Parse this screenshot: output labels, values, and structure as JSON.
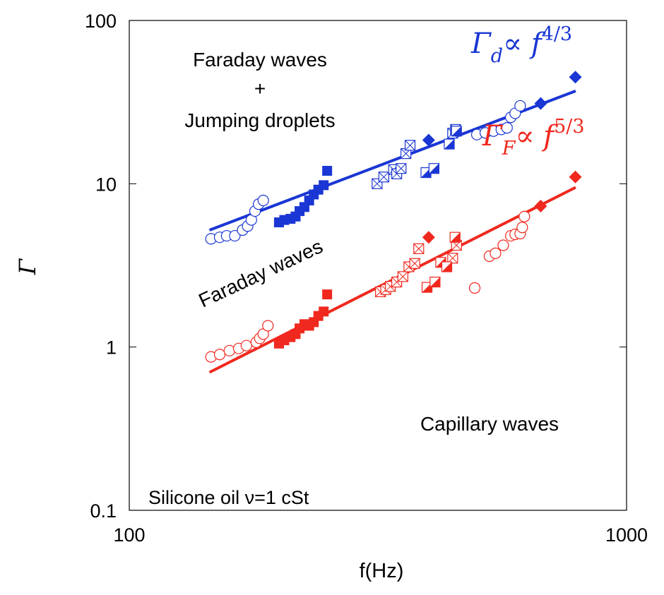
{
  "chart_data": {
    "type": "scatter",
    "title": "",
    "xlabel": "f(Hz)",
    "ylabel": "Γ",
    "xscale": "log",
    "yscale": "log",
    "xlim": [
      100,
      1000
    ],
    "ylim": [
      0.1,
      100
    ],
    "x_ticks": [
      {
        "value": 100,
        "label": "100"
      },
      {
        "value": 1000,
        "label": "1000"
      }
    ],
    "y_ticks": [
      {
        "value": 0.1,
        "label": "0.1"
      },
      {
        "value": 1,
        "label": "1"
      },
      {
        "value": 10,
        "label": "10"
      },
      {
        "value": 100,
        "label": "100"
      }
    ],
    "grid": false,
    "colors": {
      "droplet": "#1a36d4",
      "faraday": "#f0281e"
    },
    "region_labels": {
      "top_line1": "Faraday waves",
      "top_line2": "+",
      "top_line3": "Jumping droplets",
      "middle": "Faraday waves",
      "bottom": "Capillary waves",
      "fluid": "Silicone oil ν=1 cSt"
    },
    "fit_labels": {
      "droplet": {
        "gamma": "Γ",
        "subscript": "d",
        "rest": "∝ f",
        "exponent": "4/3"
      },
      "faraday": {
        "gamma": "Γ",
        "subscript": "F",
        "rest": "∝ f",
        "exponent": "5/3"
      }
    },
    "series": [
      {
        "color": "#1a36d4",
        "marker": "open-circle",
        "points": [
          [
            146,
            4.6
          ],
          [
            152,
            4.7
          ],
          [
            157,
            4.8
          ],
          [
            163,
            4.8
          ],
          [
            169,
            5.2
          ],
          [
            173,
            5.5
          ],
          [
            176,
            6
          ],
          [
            179,
            6.8
          ],
          [
            182,
            7.5
          ],
          [
            186,
            7.9
          ],
          [
            500,
            20
          ],
          [
            520,
            20.5
          ],
          [
            540,
            21
          ],
          [
            560,
            21.5
          ],
          [
            575,
            22
          ],
          [
            585,
            25.5
          ],
          [
            597,
            27
          ],
          [
            611,
            30
          ]
        ]
      },
      {
        "color": "#1a36d4",
        "marker": "filled-square",
        "points": [
          [
            200,
            5.8
          ],
          [
            205,
            6
          ],
          [
            211,
            6.1
          ],
          [
            216,
            6.3
          ],
          [
            220,
            6.8
          ],
          [
            225,
            7.2
          ],
          [
            230,
            7.9
          ],
          [
            235,
            8.6
          ],
          [
            240,
            9.2
          ],
          [
            246,
            9.8
          ],
          [
            250,
            12
          ]
        ]
      },
      {
        "color": "#1a36d4",
        "marker": "crossed-square",
        "points": [
          [
            315,
            10
          ],
          [
            325,
            11
          ],
          [
            340,
            12.2
          ],
          [
            345,
            11.5
          ],
          [
            352,
            12.4
          ],
          [
            360,
            15.3
          ],
          [
            367,
            17.2
          ],
          [
            447,
            20.4
          ],
          [
            453,
            21.5
          ]
        ]
      },
      {
        "color": "#1a36d4",
        "marker": "half-filled-square",
        "points": [
          [
            395,
            11.7
          ],
          [
            410,
            12.4
          ],
          [
            440,
            17.5
          ],
          [
            455,
            21
          ]
        ]
      },
      {
        "color": "#1a36d4",
        "marker": "filled-diamond",
        "points": [
          [
            400,
            18.5
          ],
          [
            672,
            31
          ],
          [
            789,
            45
          ]
        ]
      },
      {
        "color": "#f0281e",
        "marker": "open-circle",
        "points": [
          [
            146,
            0.87
          ],
          [
            152,
            0.9
          ],
          [
            159,
            0.95
          ],
          [
            166,
            0.98
          ],
          [
            172,
            1.02
          ],
          [
            180,
            1.07
          ],
          [
            183,
            1.13
          ],
          [
            186,
            1.2
          ],
          [
            190,
            1.35
          ],
          [
            495,
            2.3
          ],
          [
            530,
            3.6
          ],
          [
            545,
            3.75
          ],
          [
            565,
            4.2
          ],
          [
            585,
            4.8
          ],
          [
            597,
            4.9
          ],
          [
            611,
            4.95
          ],
          [
            617,
            5.4
          ],
          [
            623,
            6.3
          ]
        ]
      },
      {
        "color": "#f0281e",
        "marker": "filled-square",
        "points": [
          [
            200,
            1.05
          ],
          [
            205,
            1.1
          ],
          [
            211,
            1.15
          ],
          [
            216,
            1.2
          ],
          [
            220,
            1.3
          ],
          [
            225,
            1.38
          ],
          [
            230,
            1.35
          ],
          [
            235,
            1.42
          ],
          [
            240,
            1.55
          ],
          [
            246,
            1.65
          ],
          [
            250,
            2.1
          ]
        ]
      },
      {
        "color": "#f0281e",
        "marker": "crossed-square",
        "points": [
          [
            320,
            2.18
          ],
          [
            328,
            2.25
          ],
          [
            335,
            2.35
          ],
          [
            345,
            2.5
          ],
          [
            355,
            2.7
          ],
          [
            365,
            3.1
          ],
          [
            375,
            3.25
          ],
          [
            382,
            4
          ],
          [
            447,
            3.5
          ],
          [
            455,
            4.2
          ]
        ]
      },
      {
        "color": "#f0281e",
        "marker": "half-filled-square",
        "points": [
          [
            397,
            2.32
          ],
          [
            412,
            2.5
          ],
          [
            423,
            3.3
          ],
          [
            435,
            3.1
          ],
          [
            452,
            4.7
          ]
        ]
      },
      {
        "color": "#f0281e",
        "marker": "filled-diamond",
        "points": [
          [
            400,
            4.7
          ],
          [
            672,
            7.3
          ],
          [
            789,
            11
          ]
        ]
      }
    ],
    "fit_lines": [
      {
        "color": "#1a36d4",
        "exponent": "4/3",
        "x": [
          145,
          790
        ],
        "y": [
          5.2,
          37
        ]
      },
      {
        "color": "#f0281e",
        "exponent": "5/3",
        "x": [
          145,
          790
        ],
        "y": [
          0.7,
          9.5
        ]
      }
    ]
  }
}
